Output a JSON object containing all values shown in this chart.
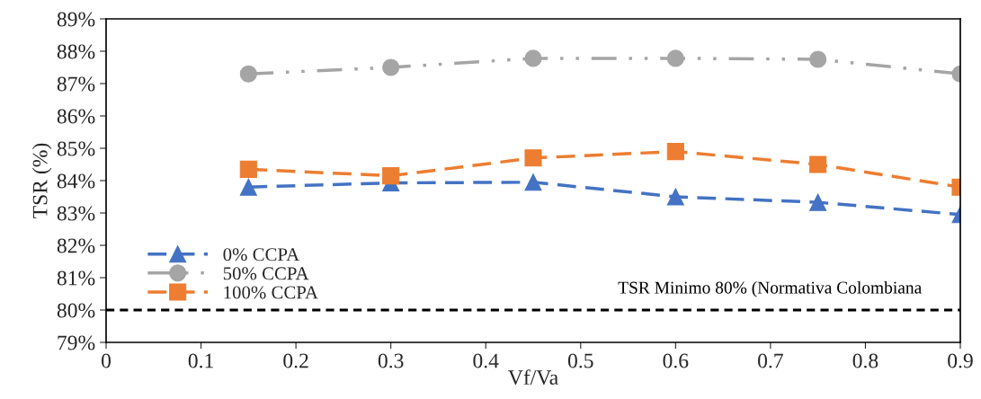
{
  "chart_data": {
    "type": "line",
    "xlabel": "Vf/Va",
    "ylabel": "TSR (%)",
    "x": [
      0.15,
      0.3,
      0.45,
      0.6,
      0.75,
      0.9
    ],
    "series": [
      {
        "name": "0% CCPA",
        "color": "#4472c4",
        "marker": "triangle",
        "line_style": "dashed",
        "values": [
          83.8,
          83.93,
          83.95,
          83.5,
          83.33,
          82.95
        ]
      },
      {
        "name": "50% CCPA",
        "color": "#a5a5a5",
        "marker": "circle",
        "line_style": "dotted",
        "values": [
          87.3,
          87.5,
          87.78,
          87.78,
          87.75,
          87.3
        ]
      },
      {
        "name": "100% CCPA",
        "color": "#ed7d31",
        "marker": "square",
        "line_style": "dashed",
        "values": [
          84.35,
          84.15,
          84.7,
          84.9,
          84.5,
          83.8
        ]
      }
    ],
    "xlim": [
      0,
      0.9
    ],
    "xticks": [
      0,
      0.1,
      0.2,
      0.3,
      0.4,
      0.5,
      0.6,
      0.7,
      0.8,
      0.9
    ],
    "ylim": [
      79,
      89
    ],
    "yticks": [
      {
        "value": 79,
        "label": "79%"
      },
      {
        "value": 80,
        "label": "80%"
      },
      {
        "value": 81,
        "label": "81%"
      },
      {
        "value": 82,
        "label": "82%"
      },
      {
        "value": 83,
        "label": "83%"
      },
      {
        "value": 84,
        "label": "84%"
      },
      {
        "value": 85,
        "label": "85%"
      },
      {
        "value": 86,
        "label": "86%"
      },
      {
        "value": 87,
        "label": "87%"
      },
      {
        "value": 88,
        "label": "88%"
      },
      {
        "value": 89,
        "label": "89%"
      }
    ],
    "ref_lines": [
      {
        "axis": "y",
        "value": 80,
        "label": "TSR Minimo 80% (Normativa Colombiana",
        "color": "#000000",
        "line_style": "dashed"
      }
    ],
    "grid": false,
    "legend": "bottom left"
  }
}
